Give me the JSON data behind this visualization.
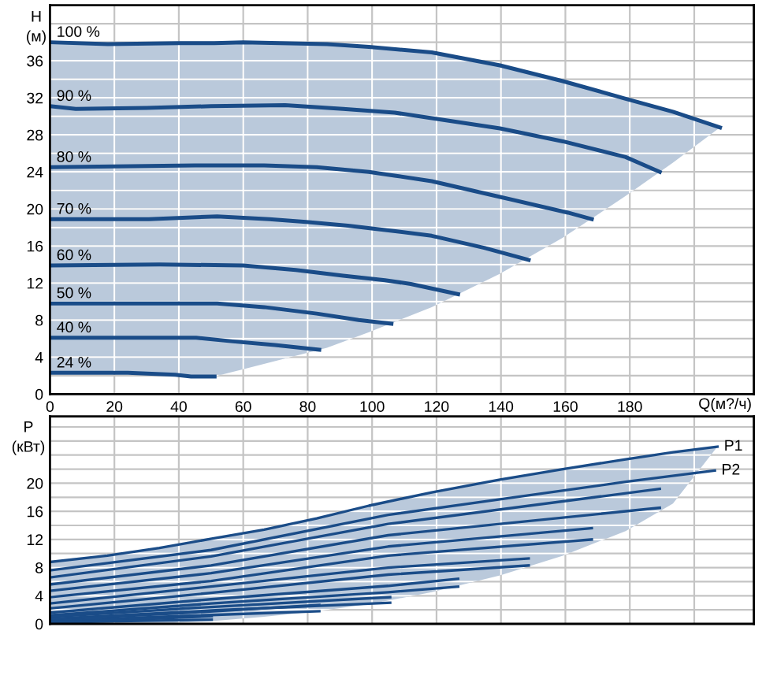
{
  "chart_data": [
    {
      "type": "line",
      "xlabel": "Q(м?/ч)",
      "ylabel": "H\n(м)",
      "xlim": [
        0,
        218.5
      ],
      "ylim": [
        0,
        42
      ],
      "xticks": [
        0,
        20,
        40,
        60,
        80,
        100,
        120,
        140,
        160,
        180,
        {
          "value": 200,
          "label": null
        }
      ],
      "yticks": [
        0,
        {
          "value": 2,
          "label": null
        },
        4,
        {
          "value": 6,
          "label": null
        },
        8,
        {
          "value": 10,
          "label": null
        },
        12,
        {
          "value": 14,
          "label": null
        },
        16,
        {
          "value": 18,
          "label": null
        },
        20,
        {
          "value": 22,
          "label": null
        },
        24,
        {
          "value": 26,
          "label": null
        },
        28,
        {
          "value": 30,
          "label": null
        },
        32,
        {
          "value": 34,
          "label": null
        },
        36,
        {
          "value": 38,
          "label": null
        },
        {
          "value": 40,
          "label": null
        }
      ],
      "grid": true,
      "legend": false,
      "marker": "none",
      "line_style": "solid",
      "series": [
        {
          "name": "100 %",
          "color": "#1a4c88",
          "x": [
            0,
            18,
            40,
            51,
            60,
            86,
            99,
            118.5,
            139.7,
            159.2,
            178.7,
            193.4,
            208
          ],
          "values": [
            38.0,
            37.8,
            37.9,
            37.9,
            38.0,
            37.8,
            37.5,
            36.9,
            35.5,
            33.8,
            31.9,
            30.5,
            28.8
          ],
          "upper": [
            38.0,
            37.8,
            37.9,
            37.9,
            38.0,
            37.8,
            37.5,
            36.9,
            35.5,
            33.8,
            31.9,
            30.5,
            28.8
          ],
          "lower": [
            2.3,
            2.3,
            2.0,
            1.9,
            2.7,
            5.0,
            6.7,
            9.4,
            13.0,
            16.9,
            21.4,
            25.0,
            28.8
          ]
        },
        {
          "name": "90 %",
          "color": "#1a4c88",
          "x": [
            0,
            8,
            30,
            50,
            73,
            91,
            107,
            118.5,
            139.7,
            159.2,
            178.7,
            189.3
          ],
          "values": [
            31.1,
            30.8,
            30.9,
            31.1,
            31.2,
            30.8,
            30.4,
            29.8,
            28.7,
            27.3,
            25.6,
            24.0
          ]
        },
        {
          "name": "80 %",
          "color": "#1a4c88",
          "x": [
            0,
            45,
            66.5,
            82.8,
            99,
            107,
            118.5,
            139.7,
            160.8,
            168.2
          ],
          "values": [
            24.5,
            24.7,
            24.7,
            24.5,
            24.0,
            23.6,
            23.0,
            21.3,
            19.6,
            18.9
          ]
        },
        {
          "name": "70 %",
          "color": "#1a4c88",
          "x": [
            0,
            30.7,
            51.9,
            68.1,
            79.5,
            92.5,
            107.2,
            118.5,
            134.8,
            148.6
          ],
          "values": [
            18.9,
            18.9,
            19.2,
            18.9,
            18.6,
            18.2,
            17.6,
            17.1,
            15.8,
            14.5
          ]
        },
        {
          "name": "60 %",
          "color": "#1a4c88",
          "x": [
            0,
            34,
            60,
            76.3,
            91,
            104,
            112,
            126.7
          ],
          "values": [
            13.9,
            14.0,
            13.9,
            13.4,
            12.8,
            12.3,
            11.9,
            10.8
          ]
        },
        {
          "name": "50 %",
          "color": "#1a4c88",
          "x": [
            0,
            51.9,
            66.5,
            82.8,
            95.8,
            106
          ],
          "values": [
            9.8,
            9.8,
            9.4,
            8.7,
            8.0,
            7.6
          ]
        },
        {
          "name": "40 %",
          "color": "#1a4c88",
          "x": [
            0,
            45.4,
            56.8,
            69.8,
            83.6
          ],
          "values": [
            6.1,
            6.1,
            5.7,
            5.3,
            4.8
          ]
        },
        {
          "name": "24 %",
          "color": "#1a4c88",
          "x": [
            0,
            24.2,
            38.9,
            43.8,
            51.1
          ],
          "values": [
            2.3,
            2.3,
            2.1,
            1.9,
            1.9
          ]
        }
      ]
    },
    {
      "type": "line",
      "ylabel": "P\n(кВт)",
      "xlim": [
        0,
        218.5
      ],
      "ylim": [
        0,
        29.5
      ],
      "tick_labels": "y",
      "xticks": [
        0,
        20,
        40,
        60,
        80,
        100,
        120,
        140,
        160,
        180,
        200
      ],
      "yticks": [
        0,
        {
          "value": 2,
          "label": null
        },
        4,
        {
          "value": 6,
          "label": null
        },
        8,
        {
          "value": 10,
          "label": null
        },
        12,
        {
          "value": 14,
          "label": null
        },
        16,
        {
          "value": 18,
          "label": null
        },
        20,
        {
          "value": 22,
          "label": null
        },
        {
          "value": 24,
          "label": null
        },
        {
          "value": 26,
          "label": null
        },
        {
          "value": 28,
          "label": null
        }
      ],
      "grid": true,
      "legend": false,
      "marker": "none",
      "line_style": "solid",
      "series": [
        {
          "name": "P1",
          "color": "#1a4c88",
          "x": [
            0,
            17.8,
            34,
            50.2,
            66.5,
            82.8,
            99,
            118.5,
            139.7,
            159.2,
            178.7,
            193.4,
            207.2
          ],
          "values": [
            8.8,
            9.7,
            10.8,
            12.1,
            13.4,
            15.0,
            16.8,
            18.7,
            20.5,
            22.0,
            23.4,
            24.4,
            25.2
          ],
          "upper": [
            8.8,
            9.7,
            10.8,
            12.1,
            13.4,
            15.0,
            16.8,
            18.7,
            20.5,
            22.0,
            23.4,
            24.4,
            25.2
          ],
          "lower": [
            0,
            0,
            0,
            0.4,
            1.0,
            1.8,
            2.8,
            4.5,
            6.9,
            9.7,
            13.2,
            17.1,
            25.2
          ]
        },
        {
          "name": "P2",
          "color": "#1a4c88",
          "x": [
            0,
            50,
            105,
            139.7,
            178.7,
            206.4
          ],
          "values": [
            7.6,
            10.5,
            15.5,
            17.7,
            20.2,
            21.8
          ]
        },
        {
          "color": "#1a4c88",
          "x": [
            0,
            50,
            105,
            189.3
          ],
          "values": [
            6.6,
            9.6,
            14.2,
            19.2
          ]
        },
        {
          "color": "#1a4c88",
          "x": [
            0,
            50,
            105,
            189.3
          ],
          "values": [
            5.6,
            8.3,
            12.6,
            16.5
          ]
        },
        {
          "color": "#1a4c88",
          "x": [
            0,
            50,
            105,
            168.2
          ],
          "values": [
            4.7,
            7.2,
            11.0,
            13.6
          ]
        },
        {
          "color": "#1a4c88",
          "x": [
            0,
            50,
            105,
            168.2
          ],
          "values": [
            3.8,
            6.1,
            9.7,
            12.0
          ]
        },
        {
          "color": "#1a4c88",
          "x": [
            0,
            50,
            105,
            148.6
          ],
          "values": [
            2.9,
            5.3,
            8.0,
            9.3
          ]
        },
        {
          "color": "#1a4c88",
          "x": [
            0,
            50,
            105,
            148.6
          ],
          "values": [
            2.2,
            4.4,
            7.0,
            8.3
          ]
        },
        {
          "color": "#1a4c88",
          "x": [
            0,
            50,
            105,
            126.7
          ],
          "values": [
            1.6,
            3.5,
            5.4,
            6.4
          ]
        },
        {
          "color": "#1a4c88",
          "x": [
            0,
            50,
            105,
            126.7
          ],
          "values": [
            1.2,
            2.9,
            4.5,
            5.3
          ]
        },
        {
          "color": "#1a4c88",
          "x": [
            0,
            50,
            105.6
          ],
          "values": [
            1.0,
            2.4,
            3.8
          ]
        },
        {
          "color": "#1a4c88",
          "x": [
            0,
            50,
            105.6
          ],
          "values": [
            0.7,
            1.9,
            3.0
          ]
        },
        {
          "color": "#1a4c88",
          "x": [
            0,
            40,
            83.6
          ],
          "values": [
            0.6,
            1.5,
            2.7
          ]
        },
        {
          "color": "#1a4c88",
          "x": [
            0,
            40,
            83.6
          ],
          "values": [
            0.4,
            1.1,
            1.8
          ]
        },
        {
          "color": "#1a4c88",
          "x": [
            0,
            25,
            50.2
          ],
          "values": [
            0.3,
            0.6,
            1.1
          ]
        },
        {
          "color": "#1a4c88",
          "x": [
            0,
            25,
            50.2
          ],
          "values": [
            0.2,
            0.4,
            0.6
          ]
        }
      ]
    }
  ]
}
